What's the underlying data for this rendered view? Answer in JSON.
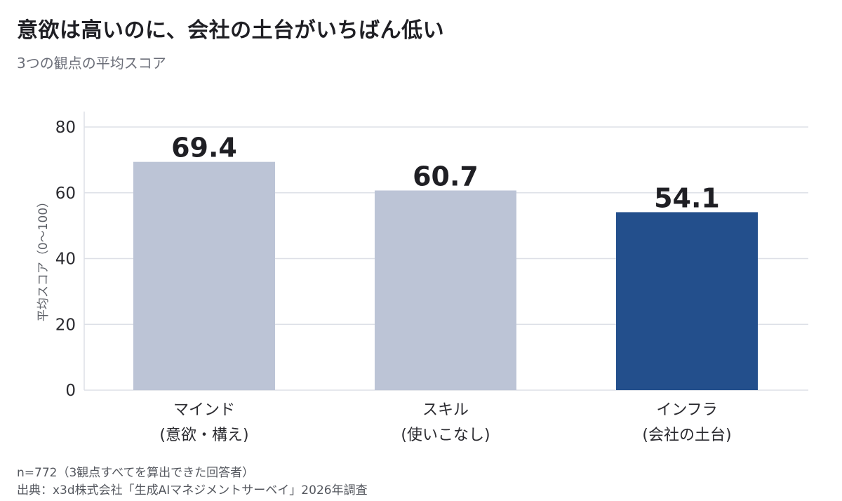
{
  "header": {
    "title": "意欲は高いのに、会社の土台がいちばん低い",
    "subtitle": "3つの観点の平均スコア"
  },
  "footer": {
    "note": "n=772（3観点すべてを算出できた回答者）",
    "source": "出典：x3d株式会社「生成AIマネジメントサーベイ」2026年調査"
  },
  "colors": {
    "bar_default": "#bcc4d6",
    "bar_highlight": "#234f8c",
    "grid": "#dde0e7",
    "axis_text": "#2b2b30",
    "value_label": "#1f1f24"
  },
  "chart_data": {
    "type": "bar",
    "title": "意欲は高いのに、会社の土台がいちばん低い",
    "subtitle": "3つの観点の平均スコア",
    "xlabel": "",
    "ylabel": "平均スコア（0〜100）",
    "categories": [
      [
        "マインド",
        "(意欲・構え)"
      ],
      [
        "スキル",
        "(使いこなし)"
      ],
      [
        "インフラ",
        "(会社の土台)"
      ]
    ],
    "values": [
      69.4,
      60.7,
      54.1
    ],
    "value_labels": [
      "69.4",
      "60.7",
      "54.1"
    ],
    "highlight_index": 2,
    "ylim": [
      0,
      80
    ],
    "yticks": [
      0,
      20,
      40,
      60,
      80
    ],
    "grid": true,
    "legend": "none"
  }
}
